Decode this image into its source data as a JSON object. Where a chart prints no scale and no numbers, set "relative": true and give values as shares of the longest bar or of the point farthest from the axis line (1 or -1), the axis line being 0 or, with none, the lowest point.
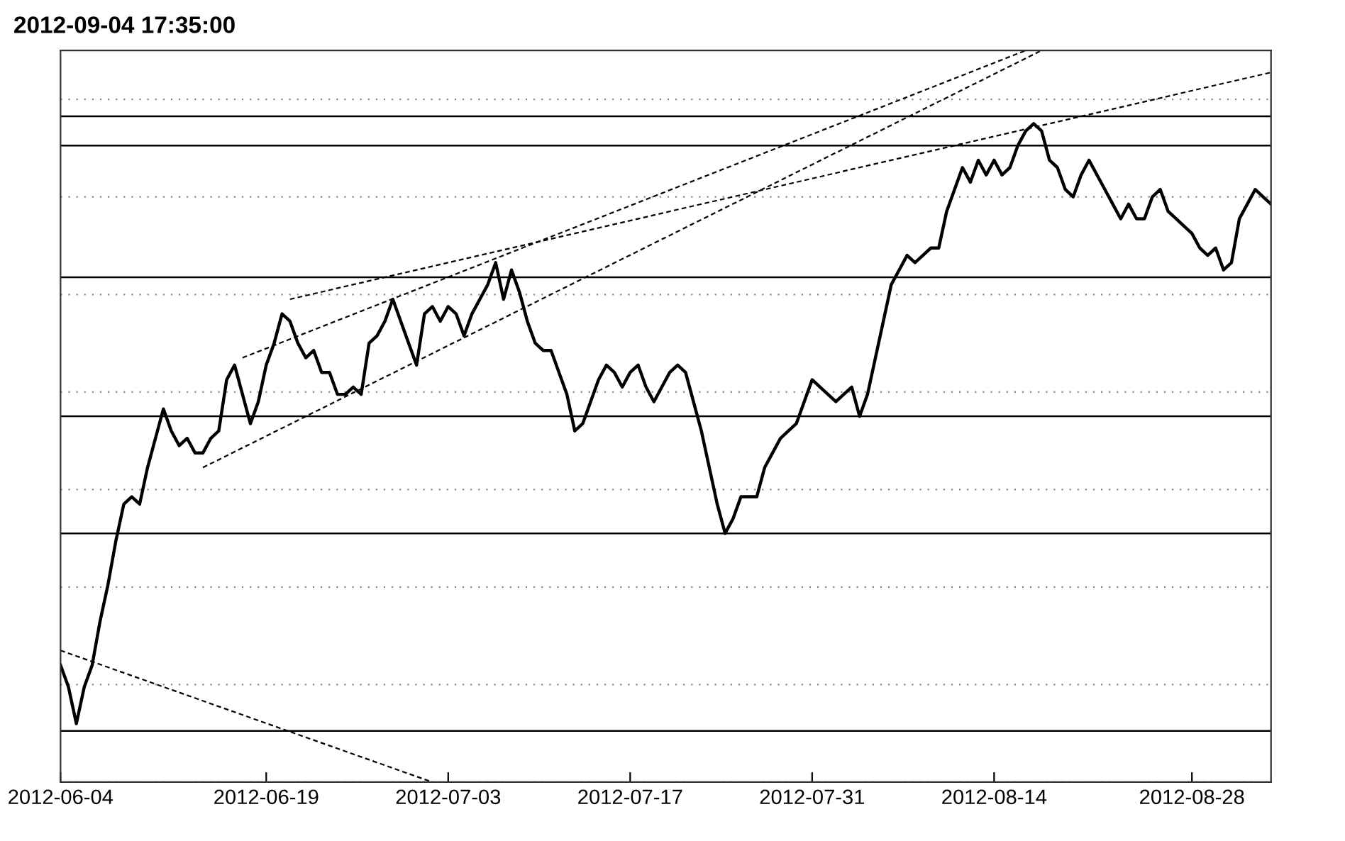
{
  "chart_data": {
    "type": "line",
    "title": "2012-09-04 17:35:00",
    "relative": true,
    "categories": [
      "2012-06-04",
      null,
      null,
      null,
      null,
      null,
      null,
      null,
      null,
      null,
      null,
      null,
      null,
      null,
      null,
      null,
      null,
      null,
      null,
      null,
      null,
      null,
      null,
      null,
      null,
      null,
      "2012-06-19",
      null,
      null,
      null,
      null,
      null,
      null,
      null,
      null,
      null,
      null,
      null,
      null,
      null,
      null,
      null,
      null,
      null,
      null,
      null,
      null,
      null,
      null,
      "2012-07-03",
      null,
      null,
      null,
      null,
      null,
      null,
      null,
      null,
      null,
      null,
      null,
      null,
      null,
      null,
      null,
      null,
      null,
      null,
      null,
      null,
      null,
      null,
      "2012-07-17",
      null,
      null,
      null,
      null,
      null,
      null,
      null,
      null,
      null,
      null,
      null,
      null,
      null,
      null,
      null,
      null,
      null,
      null,
      null,
      null,
      null,
      null,
      "2012-07-31",
      null,
      null,
      null,
      null,
      null,
      null,
      null,
      null,
      null,
      null,
      null,
      null,
      null,
      null,
      null,
      null,
      null,
      null,
      null,
      null,
      null,
      null,
      "2012-08-14",
      null,
      null,
      null,
      null,
      null,
      null,
      null,
      null,
      null,
      null,
      null,
      null,
      null,
      null,
      null,
      null,
      null,
      null,
      null,
      null,
      null,
      null,
      null,
      null,
      "2012-08-28",
      null,
      null,
      null,
      null,
      null,
      null,
      null,
      null,
      null,
      null
    ],
    "tick_labels": "x",
    "grid": "y",
    "series": [
      {
        "color": "#000000",
        "line_style": "solid",
        "values": [
          0.16,
          0.13,
          0.08,
          0.13,
          0.16,
          0.22,
          0.27,
          0.33,
          0.38,
          0.39,
          0.38,
          0.43,
          0.47,
          0.51,
          0.48,
          0.46,
          0.47,
          0.45,
          0.45,
          0.47,
          0.48,
          0.55,
          0.57,
          0.53,
          0.49,
          0.52,
          0.57,
          0.6,
          0.64,
          0.63,
          0.6,
          0.58,
          0.59,
          0.56,
          0.56,
          0.53,
          0.53,
          0.54,
          0.53,
          0.6,
          0.61,
          0.63,
          0.66,
          0.63,
          0.6,
          0.57,
          0.64,
          0.65,
          0.63,
          0.65,
          0.64,
          0.61,
          0.64,
          0.66,
          0.68,
          0.71,
          0.66,
          0.7,
          0.67,
          0.63,
          0.6,
          0.59,
          0.59,
          0.56,
          0.53,
          0.48,
          0.49,
          0.52,
          0.55,
          0.57,
          0.56,
          0.54,
          0.56,
          0.57,
          0.54,
          0.52,
          0.54,
          0.56,
          0.57,
          0.56,
          0.52,
          0.48,
          0.43,
          0.38,
          0.34,
          0.36,
          0.39,
          0.39,
          0.39,
          0.43,
          0.45,
          0.47,
          0.48,
          0.49,
          0.52,
          0.55,
          0.54,
          0.53,
          0.52,
          0.53,
          0.54,
          0.5,
          0.53,
          0.58,
          0.63,
          0.68,
          0.7,
          0.72,
          0.71,
          0.72,
          0.73,
          0.73,
          0.78,
          0.81,
          0.84,
          0.82,
          0.85,
          0.83,
          0.85,
          0.83,
          0.84,
          0.87,
          0.89,
          0.9,
          0.89,
          0.85,
          0.84,
          0.81,
          0.8,
          0.83,
          0.85,
          0.83,
          0.81,
          0.79,
          0.77,
          0.79,
          0.77,
          0.77,
          0.8,
          0.81,
          0.78,
          0.77,
          0.76,
          0.75,
          0.73,
          0.72,
          0.73,
          0.7,
          0.71,
          0.77,
          0.79,
          0.81,
          0.8,
          0.79
        ]
      },
      {
        "type": "line",
        "color": "#000000",
        "line_style": "dashed",
        "values": [
          0.18,
          null,
          null,
          null,
          null,
          null,
          null,
          null,
          null,
          null,
          null,
          null,
          null,
          null,
          null,
          null,
          null,
          null,
          null,
          null,
          null,
          null,
          null,
          null,
          null,
          null,
          null,
          null,
          null,
          null,
          null,
          null,
          null,
          null,
          null,
          null,
          null,
          null,
          null,
          null,
          null,
          null,
          null,
          null,
          null,
          null,
          null,
          0,
          null,
          null,
          null,
          null,
          null,
          null,
          null,
          null,
          null,
          null,
          null,
          null,
          null,
          null,
          null,
          null,
          null,
          null,
          null,
          null,
          null,
          null,
          null,
          null,
          null,
          null,
          null,
          null,
          null,
          null,
          null,
          null,
          null,
          null,
          null,
          null,
          null,
          null,
          null,
          null,
          null,
          null,
          null,
          null,
          null,
          null,
          null,
          null,
          null,
          null,
          null,
          null,
          null,
          null,
          null,
          null,
          null,
          null,
          null,
          null,
          null,
          null,
          null,
          null,
          null,
          null,
          null,
          null,
          null,
          null,
          null,
          null,
          null,
          null,
          null,
          null,
          null,
          null,
          null,
          null,
          null,
          null,
          null,
          null,
          null,
          null,
          null,
          null,
          null,
          null,
          null,
          null,
          null,
          null,
          null,
          null,
          null,
          null,
          null,
          null,
          null,
          null,
          null,
          null,
          null,
          null
        ]
      },
      {
        "type": "line",
        "color": "#000000",
        "line_style": "dashed",
        "values": [
          null,
          null,
          null,
          null,
          null,
          null,
          null,
          null,
          null,
          null,
          null,
          null,
          null,
          null,
          null,
          null,
          null,
          null,
          0.43,
          null,
          null,
          null,
          null,
          null,
          null,
          null,
          null,
          null,
          null,
          null,
          null,
          null,
          null,
          null,
          null,
          null,
          null,
          null,
          null,
          null,
          null,
          null,
          null,
          null,
          null,
          null,
          null,
          null,
          null,
          null,
          null,
          null,
          null,
          null,
          null,
          null,
          null,
          null,
          null,
          null,
          null,
          null,
          null,
          null,
          null,
          null,
          null,
          null,
          null,
          null,
          null,
          null,
          null,
          null,
          null,
          null,
          null,
          null,
          null,
          null,
          null,
          null,
          null,
          null,
          null,
          null,
          null,
          null,
          null,
          null,
          null,
          null,
          null,
          null,
          null,
          null,
          null,
          null,
          null,
          null,
          null,
          null,
          null,
          null,
          null,
          null,
          null,
          null,
          null,
          null,
          null,
          null,
          null,
          null,
          null,
          null,
          null,
          null,
          null,
          null,
          null,
          null,
          null,
          null,
          1,
          null,
          null,
          null,
          null,
          null,
          null,
          null,
          null,
          null,
          null,
          null,
          null,
          null,
          null,
          null,
          null,
          null,
          null,
          null,
          null,
          null,
          null,
          null,
          null,
          null,
          null,
          null,
          null,
          null
        ]
      },
      {
        "type": "line",
        "color": "#000000",
        "line_style": "dashed",
        "values": [
          null,
          null,
          null,
          null,
          null,
          null,
          null,
          null,
          null,
          null,
          null,
          null,
          null,
          null,
          null,
          null,
          null,
          null,
          null,
          null,
          null,
          null,
          null,
          0.58,
          null,
          null,
          null,
          null,
          null,
          null,
          null,
          null,
          null,
          null,
          null,
          null,
          null,
          null,
          null,
          null,
          null,
          null,
          null,
          null,
          null,
          null,
          null,
          null,
          null,
          null,
          null,
          null,
          null,
          null,
          null,
          null,
          null,
          null,
          null,
          null,
          null,
          null,
          null,
          null,
          null,
          null,
          null,
          null,
          null,
          null,
          null,
          null,
          null,
          null,
          null,
          null,
          null,
          null,
          null,
          null,
          null,
          null,
          null,
          null,
          null,
          null,
          null,
          null,
          null,
          null,
          null,
          null,
          null,
          null,
          null,
          null,
          null,
          null,
          null,
          null,
          null,
          null,
          null,
          null,
          null,
          null,
          null,
          null,
          null,
          null,
          null,
          null,
          null,
          null,
          null,
          null,
          null,
          null,
          null,
          null,
          null,
          null,
          1,
          null,
          null,
          null,
          null,
          null,
          null,
          null,
          null,
          null,
          null,
          null,
          null,
          null,
          null,
          null,
          null,
          null,
          null,
          null,
          null,
          null,
          null,
          null,
          null,
          null,
          null,
          null,
          null,
          null,
          null,
          null
        ]
      },
      {
        "type": "line",
        "color": "#000000",
        "line_style": "dashed",
        "values": [
          null,
          null,
          null,
          null,
          null,
          null,
          null,
          null,
          null,
          null,
          null,
          null,
          null,
          null,
          null,
          null,
          null,
          null,
          null,
          null,
          null,
          null,
          null,
          null,
          null,
          null,
          null,
          null,
          null,
          0.66,
          null,
          null,
          null,
          null,
          null,
          null,
          null,
          null,
          null,
          null,
          null,
          null,
          null,
          null,
          null,
          null,
          null,
          null,
          null,
          null,
          null,
          null,
          null,
          null,
          null,
          null,
          null,
          null,
          null,
          null,
          null,
          null,
          null,
          null,
          null,
          null,
          null,
          null,
          null,
          null,
          null,
          null,
          null,
          null,
          null,
          null,
          null,
          null,
          null,
          null,
          null,
          null,
          null,
          null,
          null,
          null,
          null,
          null,
          null,
          null,
          null,
          null,
          null,
          null,
          null,
          null,
          null,
          null,
          null,
          null,
          null,
          null,
          null,
          null,
          null,
          null,
          null,
          null,
          null,
          null,
          null,
          null,
          null,
          null,
          null,
          null,
          null,
          null,
          null,
          null,
          null,
          null,
          null,
          null,
          null,
          null,
          null,
          null,
          null,
          null,
          null,
          null,
          null,
          null,
          null,
          null,
          null,
          null,
          null,
          null,
          null,
          null,
          null,
          null,
          null,
          null,
          null,
          null,
          null,
          null,
          null,
          null,
          null,
          0.97
        ]
      }
    ],
    "ref_lines": [
      {
        "axis": "y",
        "value": 0.91,
        "color": "#000000",
        "line_style": "solid"
      },
      {
        "axis": "y",
        "value": 0.87,
        "color": "#000000",
        "line_style": "solid"
      },
      {
        "axis": "y",
        "value": 0.69,
        "color": "#000000",
        "line_style": "solid"
      },
      {
        "axis": "y",
        "value": 0.5,
        "color": "#000000",
        "line_style": "solid"
      },
      {
        "axis": "y",
        "value": 0.34,
        "color": "#000000",
        "line_style": "solid"
      },
      {
        "axis": "y",
        "value": 0.07,
        "color": "#000000",
        "line_style": "solid"
      }
    ]
  }
}
